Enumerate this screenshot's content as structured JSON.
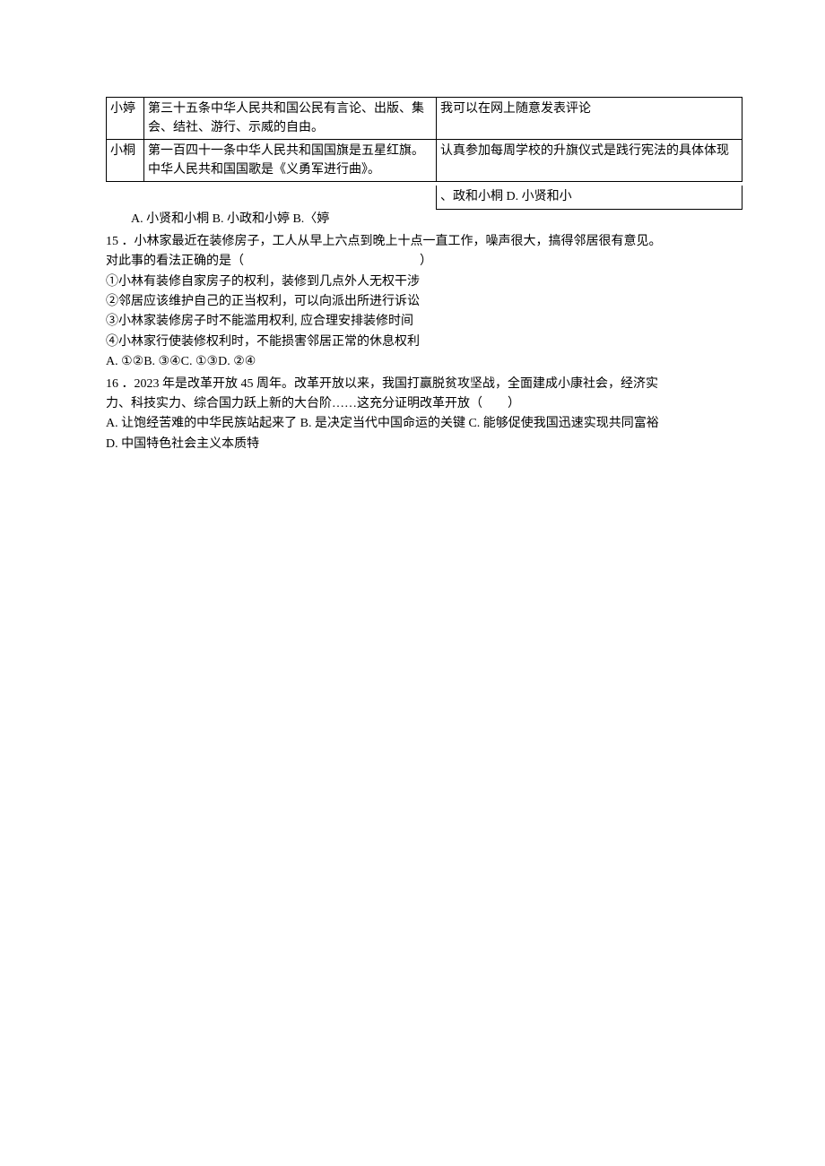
{
  "table": {
    "rows": [
      {
        "name": "小婷",
        "article": "第三十五条中华人民共和国公民有言论、出版、集会、结社、游行、示威的自由。",
        "practice": "我可以在网上随意发表评论"
      },
      {
        "name": "小桐",
        "article": "第一百四十一条中华人民共和国国旗是五星红旗。中华人民共和国国歌是《义勇军进行曲》。",
        "practice": "认真参加每周学校的升旗仪式是践行宪法的具体体现"
      }
    ]
  },
  "q14": {
    "opt_right_cell": "、政和小桐 D. 小贤和小",
    "opt_left": "A. 小贤和小桐 B. 小政和小婷 B.〈婷"
  },
  "q15": {
    "stem1": "15 ．小林家最近在装修房子，工人从早上六点到晚上十点一直工作，噪声很大，搞得邻居很有意见。",
    "stem2": "对此事的看法正确的是（　　　　　　　　　　　　　　）",
    "s1": "①小林有装修自家房子的权利，装修到几点外人无权干涉",
    "s2": "②邻居应该维护自己的正当权利，可以向派出所进行诉讼",
    "s3": "③小林家装修房子时不能滥用权利, 应合理安排装修时间",
    "s4": "④小林家行使装修权利时，不能损害邻居正常的休息权利",
    "opts": "A. ①②B. ③④C. ①③D. ②④"
  },
  "q16": {
    "stem1": "16 ．2023 年是改革开放 45 周年。改革开放以来，我国打赢脱贫攻坚战，全面建成小康社会，经济实",
    "stem2": "力、科技实力、综合国力跃上新的大台阶……这充分证明改革开放（　　）",
    "optsA": "A. 让饱经苦难的中华民族站起来了 B. 是决定当代中国命运的关键 C. 能够促使我国迅速实现共同富裕",
    "optsD": "D. 中国特色社会主义本质特"
  }
}
